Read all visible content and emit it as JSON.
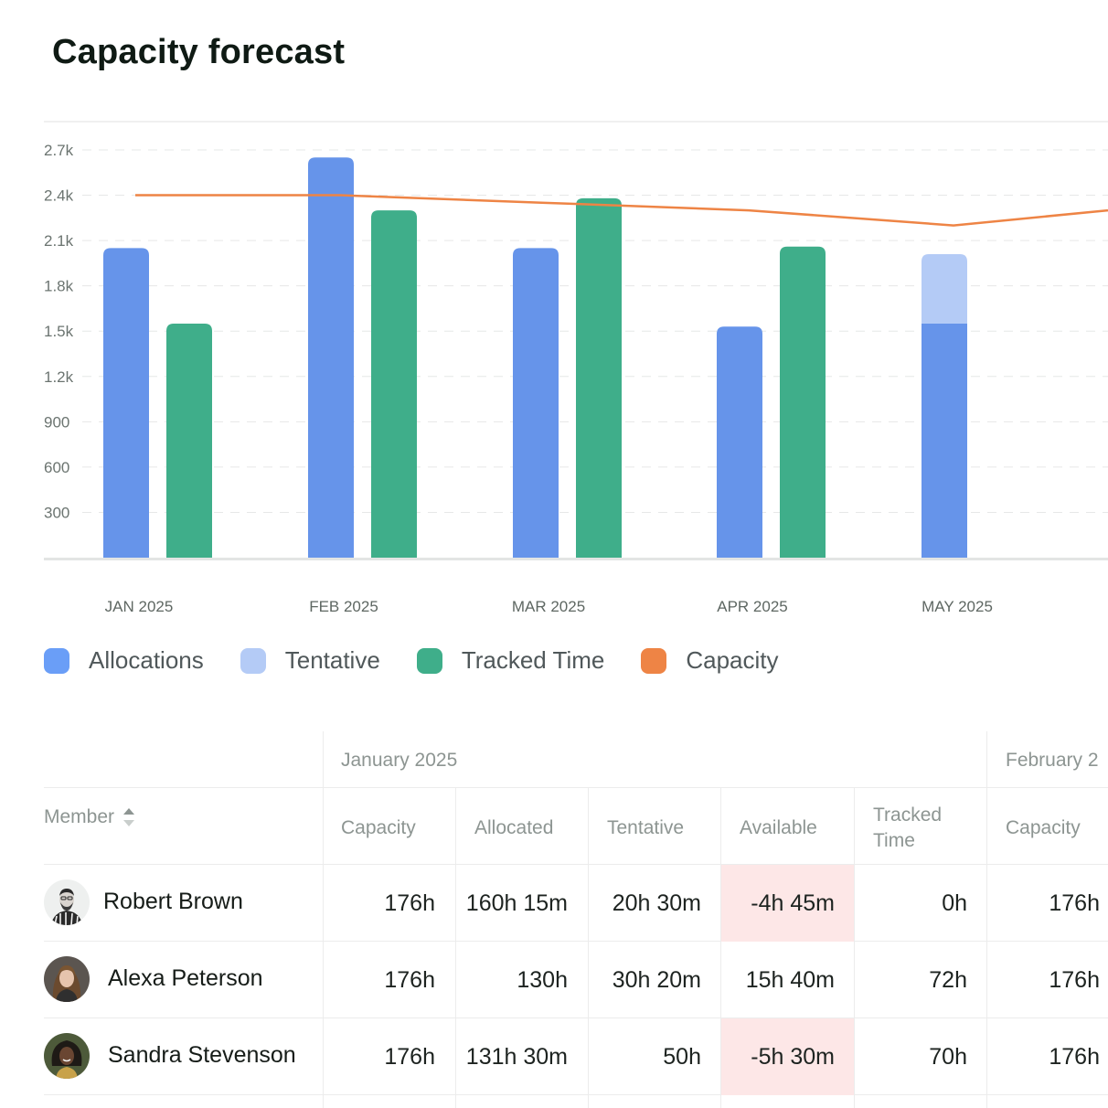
{
  "page": {
    "title": "Capacity forecast"
  },
  "colors": {
    "allocations": "#6694ea",
    "tentative": "#b4cbf6",
    "tracked": "#3fae8a",
    "capacity": "#ee8445"
  },
  "chart_data": {
    "type": "bar",
    "categories": [
      "JAN 2025",
      "FEB 2025",
      "MAR 2025",
      "APR 2025",
      "MAY 2025"
    ],
    "y_ticks": [
      "300",
      "600",
      "900",
      "1.2k",
      "1.5k",
      "1.8k",
      "2.1k",
      "2.4k",
      "2.7k"
    ],
    "ylim": [
      0,
      2700
    ],
    "grid": true,
    "series": [
      {
        "name": "Allocations",
        "type": "bar",
        "values": [
          2050,
          2650,
          2050,
          1530,
          1550
        ]
      },
      {
        "name": "Tentative",
        "type": "bar",
        "stacked_on": "Allocations",
        "values": [
          0,
          0,
          0,
          0,
          460
        ]
      },
      {
        "name": "Tracked Time",
        "type": "bar",
        "values": [
          1550,
          2300,
          2380,
          2060,
          null
        ]
      },
      {
        "name": "Capacity",
        "type": "line",
        "values": [
          2400,
          2400,
          2350,
          2300,
          2200
        ],
        "extends_to": 2300
      }
    ]
  },
  "legend": {
    "items": [
      {
        "label": "Allocations",
        "color": "#6a9ef7"
      },
      {
        "label": "Tentative",
        "color": "#b4cbf6"
      },
      {
        "label": "Tracked Time",
        "color": "#3fae8a"
      },
      {
        "label": "Capacity",
        "color": "#ee8445"
      }
    ]
  },
  "table": {
    "months": [
      "January 2025",
      "February 2"
    ],
    "member_header": "Member",
    "columns": [
      "Capacity",
      "Allocated",
      "Tentative",
      "Available",
      "Tracked\nTime",
      "Capacity"
    ],
    "rows": [
      {
        "name": "Robert Brown",
        "avatar": "avatar-robert",
        "cells": [
          "176h",
          "160h 15m",
          "20h 30m",
          "-4h 45m",
          "0h",
          "176h"
        ],
        "available_negative": true
      },
      {
        "name": "Alexa Peterson",
        "avatar": "avatar-alexa",
        "cells": [
          "176h",
          "130h",
          "30h 20m",
          "15h 40m",
          "72h",
          "176h"
        ],
        "available_negative": false
      },
      {
        "name": "Sandra Stevenson",
        "avatar": "avatar-sandra",
        "cells": [
          "176h",
          "131h 30m",
          "50h",
          "-5h 30m",
          "70h",
          "176h"
        ],
        "available_negative": true
      }
    ]
  }
}
